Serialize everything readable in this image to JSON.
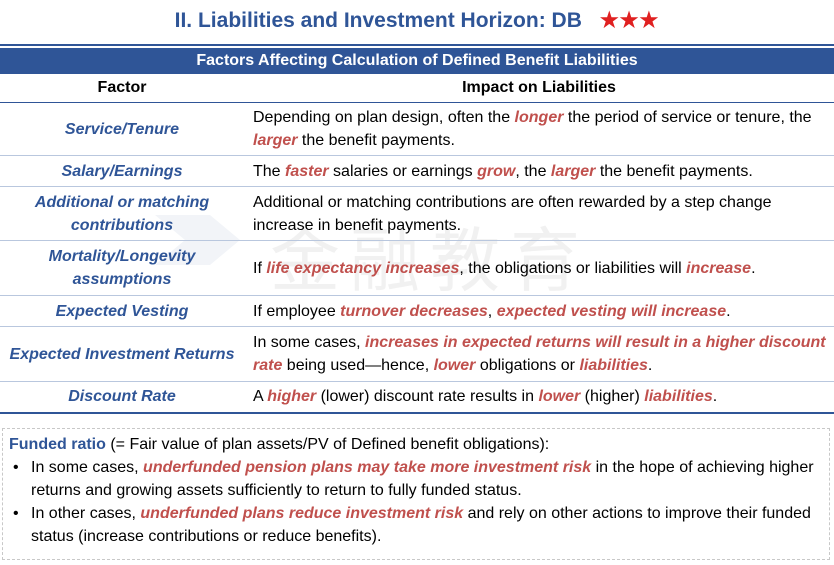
{
  "title": "II. Liabilities and Investment Horizon: DB",
  "stars": "★★★",
  "table": {
    "band": "Factors Affecting Calculation of Defined Benefit Liabilities",
    "col_factor": "Factor",
    "col_impact": "Impact on Liabilities",
    "rows": [
      {
        "factor": "Service/Tenure",
        "t1": "Depending on plan design, often the ",
        "e1": "longer",
        "t2": " the period of service or tenure, the ",
        "e2": "larger",
        "t3": " the benefit payments."
      },
      {
        "factor": "Salary/Earnings",
        "t1": "The ",
        "e1": "faster",
        "t2": " salaries or earnings ",
        "e2": "grow",
        "t3": ", the ",
        "e3": "larger",
        "t4": " the benefit payments."
      },
      {
        "factor": "Additional or matching contributions",
        "t1": "Additional or matching contributions are often rewarded by a step change increase in benefit payments."
      },
      {
        "factor": "Mortality/Longevity assumptions",
        "t1": "If ",
        "e1": "life expectancy increases",
        "t2": ", the obligations or liabilities will ",
        "e2": "increase",
        "t3": "."
      },
      {
        "factor": "Expected Vesting",
        "t1": "If employee ",
        "e1": "turnover decreases",
        "t2": ", ",
        "e2": "expected vesting will increase",
        "t3": "."
      },
      {
        "factor": "Expected Investment Returns",
        "t1": "In some cases, ",
        "e1": "increases in expected returns will result in a higher discount rate",
        "t2": " being used—hence, ",
        "e2": "lower",
        "t3": " obligations or ",
        "e3": "liabilities",
        "t4": "."
      },
      {
        "factor": "Discount Rate",
        "t1": "A ",
        "e1": "higher",
        "t2": " (lower) discount rate results in ",
        "e2": "lower",
        "t3": " (higher) ",
        "e3": "liabilities",
        "t4": "."
      }
    ]
  },
  "watermark": "金融教育",
  "note": {
    "lead": "Funded ratio",
    "lead_rest": " (= Fair value of plan assets/PV of Defined benefit obligations):",
    "b1_t1": "In some cases, ",
    "b1_e1": "underfunded pension plans may take more investment risk",
    "b1_t2": " in the hope of achieving higher returns and growing assets sufficiently to return to fully funded status.",
    "b2_t1": "In other cases, ",
    "b2_e1": "underfunded plans reduce investment risk",
    "b2_t2": " and rely on other actions to improve their funded status (increase contributions or reduce benefits)."
  },
  "colors": {
    "heading_blue": "#2f5597",
    "emphasis_red": "#c0504d",
    "star_red": "#e02020"
  }
}
